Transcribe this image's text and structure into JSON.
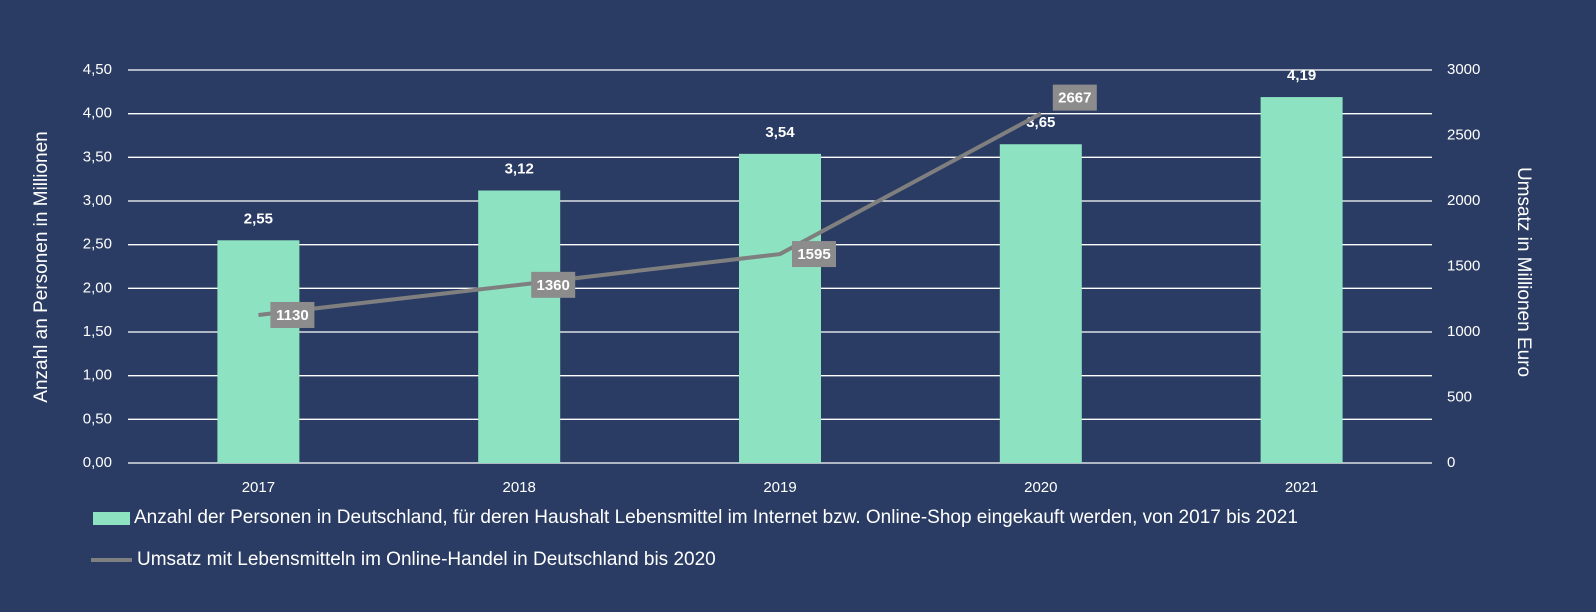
{
  "chart_data": {
    "type": "bar",
    "categories": [
      "2017",
      "2018",
      "2019",
      "2020",
      "2021"
    ],
    "series": [
      {
        "name": "Anzahl der Personen in Deutschland, für deren Haushalt Lebensmittel im Internet bzw. Online-Shop eingekauft werden, von 2017 bis 2021",
        "type": "bar",
        "color": "#8de3c1",
        "values": [
          2.55,
          3.12,
          3.54,
          3.65,
          4.19
        ],
        "value_labels": [
          "2,55",
          "3,12",
          "3,54",
          "3,65",
          "4,19"
        ]
      },
      {
        "name": "Umsatz mit Lebensmitteln im Online-Handel in Deutschland bis 2020",
        "type": "line",
        "axis": "y2",
        "color": "#7f7f7f",
        "values": [
          1130,
          1360,
          1595,
          2667,
          null
        ]
      }
    ],
    "ylabel": "Anzahl an Personen in Millionen",
    "y2label": "Umsatz in Millionen Euro",
    "ylim": [
      0,
      4.5
    ],
    "yticks": [
      {
        "value": 0,
        "label": "0,00"
      },
      {
        "value": 0.5,
        "label": "0,50"
      },
      {
        "value": 1,
        "label": "1,00"
      },
      {
        "value": 1.5,
        "label": "1,50"
      },
      {
        "value": 2,
        "label": "2,00"
      },
      {
        "value": 2.5,
        "label": "2,50"
      },
      {
        "value": 3,
        "label": "3,00"
      },
      {
        "value": 3.5,
        "label": "3,50"
      },
      {
        "value": 4,
        "label": "4,00"
      },
      {
        "value": 4.5,
        "label": "4,50"
      }
    ],
    "y2lim": [
      0,
      3000
    ],
    "y2ticks": [
      0,
      500,
      1000,
      1500,
      2000,
      2500,
      3000
    ],
    "grid": true,
    "legend": "bottom"
  }
}
